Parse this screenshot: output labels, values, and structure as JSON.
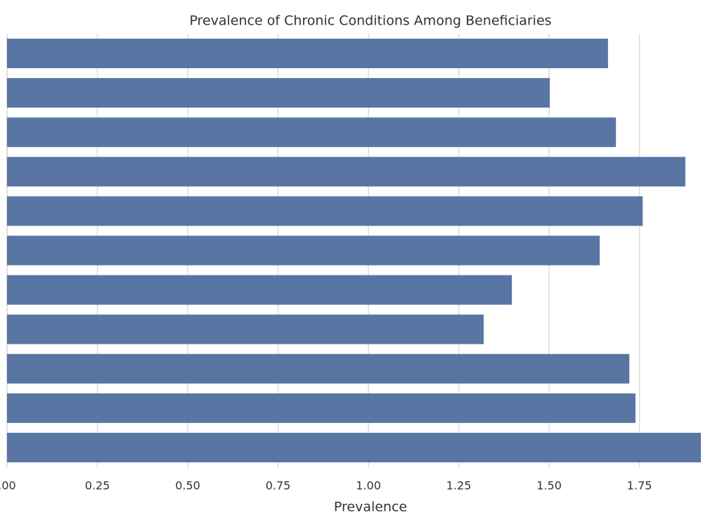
{
  "chart_data": {
    "type": "barh",
    "title": "Prevalence of Chronic Conditions Among Beneficiaries",
    "xlabel": "Prevalence",
    "categories": [
      null,
      null,
      null,
      null,
      null,
      null,
      null,
      null,
      null,
      null,
      null
    ],
    "values": [
      1.663,
      1.502,
      1.685,
      1.877,
      1.759,
      1.64,
      1.397,
      1.319,
      1.722,
      1.739,
      1.92
    ],
    "color": "#5975a4",
    "xlim": [
      0,
      1.92
    ],
    "xticks": [
      {
        "value": 0,
        "label": ".00"
      },
      0.25,
      {
        "value": 0.5,
        "label": "0.50"
      },
      0.75,
      {
        "value": 1,
        "label": "1.00"
      },
      1.25,
      {
        "value": 1.5,
        "label": "1.50"
      },
      1.75
    ],
    "grid": true
  }
}
